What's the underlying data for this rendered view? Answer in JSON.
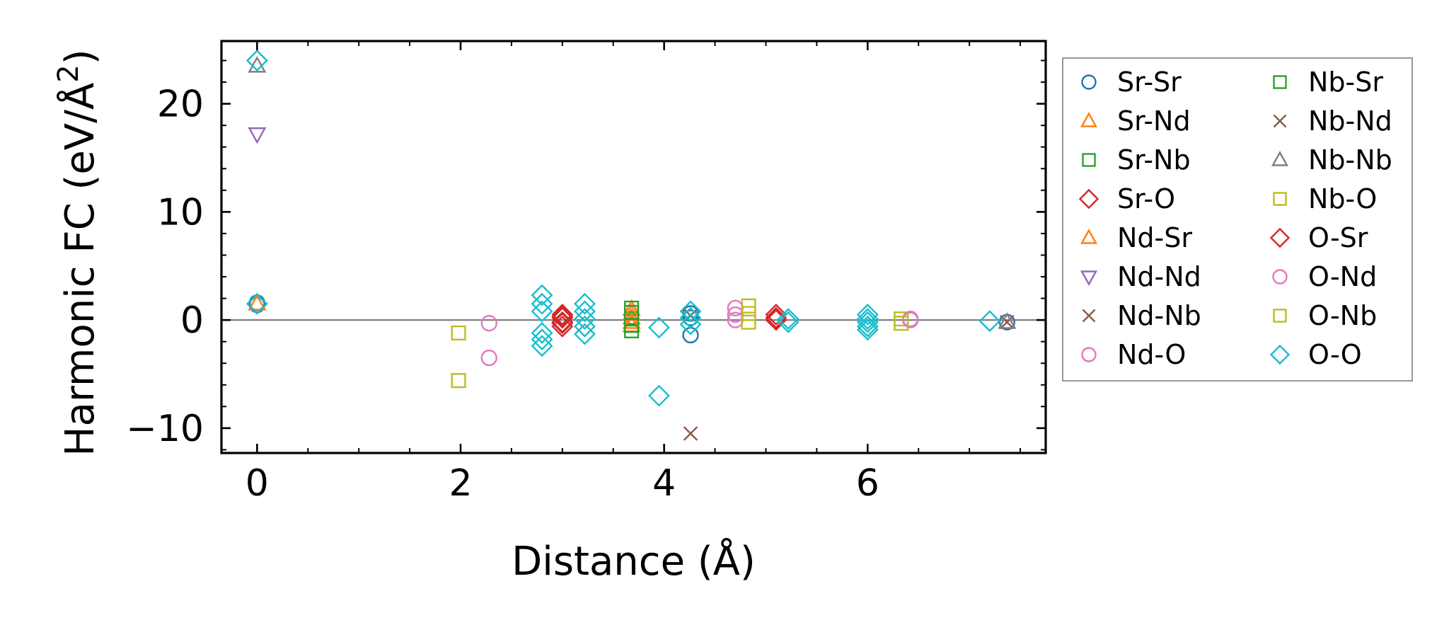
{
  "chart_data": {
    "type": "scatter",
    "title": "",
    "xlabel": "Distance (Å)",
    "ylabel": "Harmonic FC (eV/Å²)",
    "xlim": [
      -0.35,
      7.75
    ],
    "ylim": [
      -12.3,
      25.8
    ],
    "xticks": [
      0,
      2,
      4,
      6
    ],
    "xtick_labels": [
      "0",
      "2",
      "4",
      "6"
    ],
    "yticks": [
      -10,
      0,
      10,
      20
    ],
    "ytick_labels": [
      "−10",
      "0",
      "10",
      "20"
    ],
    "zero_line": true,
    "legend_position": "outside-right",
    "legend_columns": 2,
    "series": [
      {
        "name": "Sr-Sr",
        "marker": "circle",
        "color": "#1f77b4",
        "x": [
          0,
          0,
          4.26,
          4.26,
          4.26,
          7.37
        ],
        "y": [
          1.6,
          1.4,
          0.6,
          0.2,
          -1.4,
          -0.2
        ]
      },
      {
        "name": "Sr-Nd",
        "marker": "triangle-up",
        "color": "#ff7f0e",
        "x": [
          0,
          3.68,
          3.68,
          3.68
        ],
        "y": [
          1.5,
          1.0,
          0.2,
          -0.5
        ]
      },
      {
        "name": "Sr-Nb",
        "marker": "square",
        "color": "#2ca02c",
        "x": [
          3.68,
          3.68,
          3.68
        ],
        "y": [
          1.1,
          0.1,
          -1.0
        ]
      },
      {
        "name": "Sr-O",
        "marker": "diamond",
        "color": "#d62728",
        "x": [
          3.0,
          3.0,
          3.0,
          3.0,
          5.1,
          5.1
        ],
        "y": [
          0.5,
          0.2,
          -0.2,
          -0.6,
          0.5,
          0.0
        ]
      },
      {
        "name": "Nd-Sr",
        "marker": "triangle-up",
        "color": "#ff7f0e",
        "x": [
          3.68,
          3.68
        ],
        "y": [
          0.6,
          -0.2
        ]
      },
      {
        "name": "Nd-Nd",
        "marker": "triangle-down",
        "color": "#9467bd",
        "x": [
          0
        ],
        "y": [
          17.2
        ]
      },
      {
        "name": "Nd-Nb",
        "marker": "x",
        "color": "#8c564b",
        "x": [
          4.26,
          7.37
        ],
        "y": [
          -10.5,
          -0.2
        ]
      },
      {
        "name": "Nd-O",
        "marker": "circle",
        "color": "#e377c2",
        "x": [
          2.28,
          2.28,
          4.7,
          4.7,
          6.42
        ],
        "y": [
          -0.3,
          -3.5,
          1.1,
          0.0,
          0.1
        ]
      },
      {
        "name": "Nb-Sr",
        "marker": "square",
        "color": "#2ca02c",
        "x": [
          3.68,
          3.68
        ],
        "y": [
          0.7,
          -0.5
        ]
      },
      {
        "name": "Nb-Nd",
        "marker": "x",
        "color": "#8c564b",
        "x": [
          4.26
        ],
        "y": [
          0.4
        ]
      },
      {
        "name": "Nb-Nb",
        "marker": "triangle-up",
        "color": "#7f7f7f",
        "x": [
          0,
          7.37
        ],
        "y": [
          23.5,
          -0.2
        ]
      },
      {
        "name": "Nb-O",
        "marker": "square",
        "color": "#bcbd22",
        "x": [
          1.98,
          1.98,
          4.83,
          4.83,
          6.33
        ],
        "y": [
          -1.2,
          -5.6,
          1.3,
          -0.2,
          0.1
        ]
      },
      {
        "name": "O-Sr",
        "marker": "diamond",
        "color": "#d62728",
        "x": [
          3.0,
          3.0,
          5.1
        ],
        "y": [
          0.3,
          -0.3,
          0.2
        ]
      },
      {
        "name": "O-Nd",
        "marker": "circle",
        "color": "#e377c2",
        "x": [
          4.7,
          6.42
        ],
        "y": [
          0.5,
          0.0
        ]
      },
      {
        "name": "O-Nb",
        "marker": "square",
        "color": "#bcbd22",
        "x": [
          4.83,
          6.33
        ],
        "y": [
          0.6,
          -0.3
        ]
      },
      {
        "name": "O-O",
        "marker": "diamond",
        "color": "#17becf",
        "x": [
          0,
          0,
          2.8,
          2.8,
          2.8,
          2.8,
          2.8,
          2.8,
          3.22,
          3.22,
          3.22,
          3.22,
          3.22,
          3.95,
          3.95,
          4.26,
          4.26,
          4.26,
          5.22,
          5.22,
          6.0,
          6.0,
          6.0,
          6.0,
          6.0,
          7.2
        ],
        "y": [
          24.0,
          1.5,
          2.3,
          1.5,
          0.8,
          -1.2,
          -1.8,
          -2.4,
          1.5,
          0.8,
          0.1,
          -0.6,
          -1.3,
          -0.7,
          -7.0,
          0.8,
          0.2,
          -0.4,
          0.1,
          -0.2,
          0.5,
          0.1,
          -0.2,
          -0.6,
          -0.9,
          -0.1
        ]
      }
    ]
  }
}
